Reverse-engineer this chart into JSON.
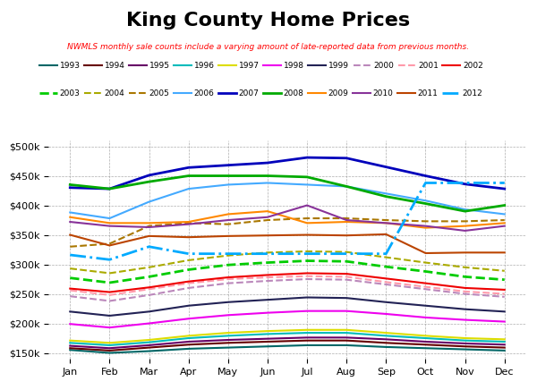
{
  "title": "King County Home Prices",
  "subtitle": "NWMLS monthly sale counts include a varying amount of late-reported data from previous months.",
  "months": [
    "Jan",
    "Feb",
    "Mar",
    "Apr",
    "May",
    "Jun",
    "Jul",
    "Aug",
    "Sep",
    "Oct",
    "Nov",
    "Dec"
  ],
  "series": [
    {
      "year": "1993",
      "color": "#006666",
      "ls": "solid",
      "lw": 1.5,
      "d": [
        155000,
        150000,
        153000,
        157000,
        159000,
        161000,
        163000,
        163000,
        160000,
        158000,
        156000,
        154000
      ]
    },
    {
      "year": "1994",
      "color": "#660000",
      "ls": "solid",
      "lw": 1.5,
      "d": [
        158000,
        154000,
        159000,
        164000,
        167000,
        169000,
        171000,
        171000,
        167000,
        164000,
        161000,
        159000
      ]
    },
    {
      "year": "1995",
      "color": "#660066",
      "ls": "solid",
      "lw": 1.5,
      "d": [
        162000,
        158000,
        163000,
        169000,
        172000,
        174000,
        176000,
        176000,
        173000,
        169000,
        166000,
        164000
      ]
    },
    {
      "year": "1996",
      "color": "#00BBBB",
      "ls": "solid",
      "lw": 1.5,
      "d": [
        167000,
        163000,
        168000,
        175000,
        179000,
        182000,
        184000,
        184000,
        179000,
        175000,
        171000,
        169000
      ]
    },
    {
      "year": "1997",
      "color": "#DDDD00",
      "ls": "solid",
      "lw": 1.5,
      "d": [
        171000,
        167000,
        172000,
        179000,
        184000,
        187000,
        189000,
        189000,
        184000,
        179000,
        175000,
        173000
      ]
    },
    {
      "year": "1998",
      "color": "#EE00EE",
      "ls": "solid",
      "lw": 1.5,
      "d": [
        199000,
        193000,
        200000,
        208000,
        214000,
        218000,
        221000,
        221000,
        216000,
        210000,
        206000,
        203000
      ]
    },
    {
      "year": "1999",
      "color": "#222255",
      "ls": "solid",
      "lw": 1.5,
      "d": [
        220000,
        213000,
        220000,
        230000,
        236000,
        240000,
        244000,
        243000,
        236000,
        230000,
        224000,
        220000
      ]
    },
    {
      "year": "2000",
      "color": "#BB88BB",
      "ls": "dashed",
      "lw": 1.5,
      "d": [
        246000,
        238000,
        248000,
        260000,
        268000,
        272000,
        275000,
        274000,
        266000,
        258000,
        250000,
        245000
      ]
    },
    {
      "year": "2001",
      "color": "#FF99AA",
      "ls": "dashed",
      "lw": 1.5,
      "d": [
        256000,
        248000,
        258000,
        268000,
        275000,
        278000,
        280000,
        279000,
        270000,
        262000,
        254000,
        250000
      ]
    },
    {
      "year": "2002",
      "color": "#EE0000",
      "ls": "solid",
      "lw": 1.5,
      "d": [
        259000,
        253000,
        261000,
        271000,
        278000,
        282000,
        285000,
        284000,
        276000,
        268000,
        260000,
        257000
      ]
    },
    {
      "year": "2003",
      "color": "#00CC00",
      "ls": "dashed",
      "lw": 2.0,
      "d": [
        277000,
        269000,
        279000,
        291000,
        299000,
        303000,
        306000,
        305000,
        296000,
        288000,
        279000,
        274000
      ]
    },
    {
      "year": "2004",
      "color": "#AAAA00",
      "ls": "dashed",
      "lw": 1.5,
      "d": [
        293000,
        285000,
        295000,
        307000,
        315000,
        320000,
        322000,
        321000,
        312000,
        303000,
        295000,
        289000
      ]
    },
    {
      "year": "2005",
      "color": "#AA7700",
      "ls": "dashed",
      "lw": 1.5,
      "d": [
        330000,
        335000,
        365000,
        370000,
        368000,
        375000,
        378000,
        378000,
        375000,
        373000,
        373000,
        375000
      ]
    },
    {
      "year": "2006",
      "color": "#44AAFF",
      "ls": "solid",
      "lw": 1.5,
      "d": [
        388000,
        378000,
        406000,
        428000,
        435000,
        438000,
        435000,
        432000,
        420000,
        408000,
        393000,
        385000
      ]
    },
    {
      "year": "2007",
      "color": "#0000BB",
      "ls": "solid",
      "lw": 2.0,
      "d": [
        430000,
        428000,
        451000,
        464000,
        468000,
        472000,
        481000,
        480000,
        465000,
        450000,
        436000,
        428000
      ]
    },
    {
      "year": "2008",
      "color": "#00AA00",
      "ls": "solid",
      "lw": 2.0,
      "d": [
        435000,
        428000,
        440000,
        450000,
        450000,
        450000,
        448000,
        432000,
        415000,
        403000,
        390000,
        400000
      ]
    },
    {
      "year": "2009",
      "color": "#FF8800",
      "ls": "solid",
      "lw": 1.5,
      "d": [
        380000,
        370000,
        370000,
        372000,
        385000,
        390000,
        370000,
        372000,
        370000,
        362000,
        365000,
        370000
      ]
    },
    {
      "year": "2010",
      "color": "#883399",
      "ls": "solid",
      "lw": 1.5,
      "d": [
        372000,
        365000,
        363000,
        368000,
        375000,
        380000,
        400000,
        375000,
        370000,
        365000,
        357000,
        365000
      ]
    },
    {
      "year": "2011",
      "color": "#BB4400",
      "ls": "solid",
      "lw": 1.5,
      "d": [
        350000,
        332000,
        348000,
        346000,
        348000,
        349000,
        350000,
        349000,
        351000,
        319000,
        320000,
        320000
      ]
    },
    {
      "year": "2012",
      "color": "#00AAFF",
      "ls": "dashdot",
      "lw": 2.0,
      "d": [
        316000,
        308000,
        330000,
        318000,
        318000,
        318000,
        318000,
        318000,
        318000,
        438000,
        438000,
        438000
      ]
    }
  ]
}
